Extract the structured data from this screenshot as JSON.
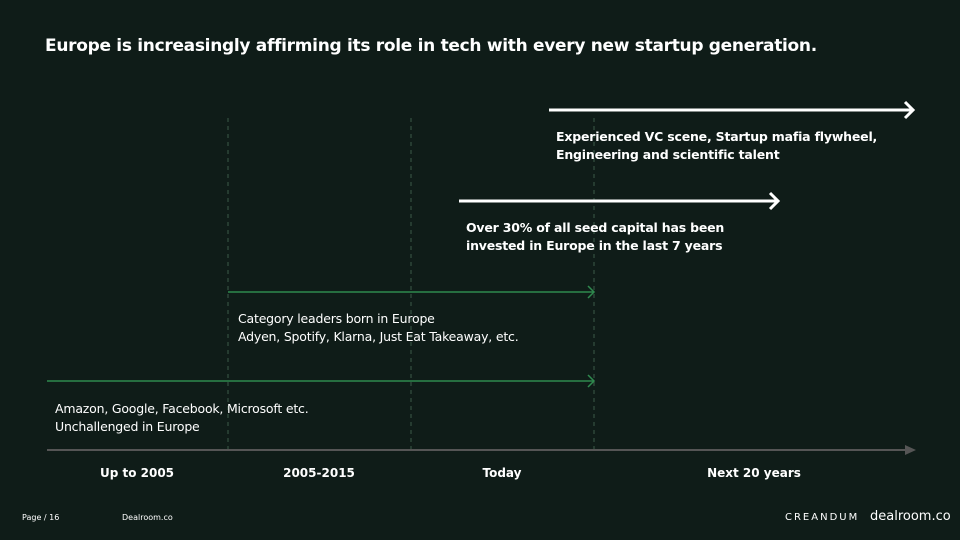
{
  "title": "Europe is increasingly affirming its role in tech with every new startup generation.",
  "arrows": [
    {
      "lines": [
        "Experienced VC scene, Startup mafia flywheel,",
        "Engineering and scientific talent"
      ]
    },
    {
      "lines": [
        "Over 30% of all seed capital has been",
        "invested in Europe in the last 7 years"
      ]
    },
    {
      "lines": [
        "Category leaders born in Europe",
        "Adyen,  Spotify,  Klarna, Just Eat Takeaway, etc."
      ]
    },
    {
      "lines": [
        "Amazon, Google, Facebook, Microsoft etc.",
        "Unchallenged in Europe"
      ]
    }
  ],
  "timeline": [
    "Up to 2005",
    "2005-2015",
    "Today",
    "Next 20 years"
  ],
  "footer": {
    "page": "Page / 16",
    "source": "Dealroom.co",
    "logos": [
      "CREANDUM",
      "dealroom.co"
    ]
  }
}
